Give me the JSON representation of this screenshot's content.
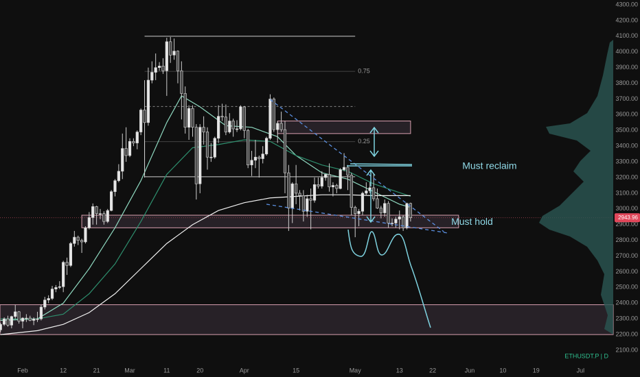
{
  "chart_data": {
    "type": "candlestick",
    "symbol_label": "ETHUSDT.P | D",
    "up_color": "#e6e6e6",
    "down_color": "#4a4a4a",
    "x": [
      "01-26",
      "01-27",
      "01-28",
      "01-29",
      "01-30",
      "01-31",
      "02-01",
      "02-02",
      "02-03",
      "02-04",
      "02-05",
      "02-06",
      "02-07",
      "02-08",
      "02-09",
      "02-10",
      "02-11",
      "02-12",
      "02-13",
      "02-14",
      "02-15",
      "02-16",
      "02-17",
      "02-18",
      "02-19",
      "02-20",
      "02-21",
      "02-22",
      "02-23",
      "02-24",
      "02-25",
      "02-26",
      "02-27",
      "02-28",
      "02-29",
      "03-01",
      "03-02",
      "03-03",
      "03-04",
      "03-05",
      "03-06",
      "03-07",
      "03-08",
      "03-09",
      "03-10",
      "03-11",
      "03-12",
      "03-13",
      "03-14",
      "03-15",
      "03-16",
      "03-17",
      "03-18",
      "03-19",
      "03-20",
      "03-21",
      "03-22",
      "03-23",
      "03-24",
      "03-25",
      "03-26",
      "03-27",
      "03-28",
      "03-29",
      "03-30",
      "03-31",
      "04-01",
      "04-02",
      "04-03",
      "04-04",
      "04-05",
      "04-06",
      "04-07",
      "04-08",
      "04-09",
      "04-10",
      "04-11",
      "04-12",
      "04-13",
      "04-14",
      "04-15",
      "04-16",
      "04-17",
      "04-18",
      "04-19",
      "04-20",
      "04-21",
      "04-22",
      "04-23",
      "04-24",
      "04-25",
      "04-26",
      "04-27",
      "04-28",
      "04-29",
      "04-30",
      "05-01",
      "05-02",
      "05-03",
      "05-04",
      "05-05",
      "05-06",
      "05-07",
      "05-08",
      "05-09",
      "05-10",
      "05-11",
      "05-12",
      "05-13",
      "05-14",
      "05-15",
      "05-16"
    ],
    "ohlc": [
      [
        2230,
        2275,
        2215,
        2265
      ],
      [
        2265,
        2310,
        2255,
        2300
      ],
      [
        2300,
        2320,
        2250,
        2260
      ],
      [
        2260,
        2320,
        2240,
        2315
      ],
      [
        2315,
        2390,
        2300,
        2345
      ],
      [
        2345,
        2350,
        2270,
        2285
      ],
      [
        2285,
        2310,
        2240,
        2305
      ],
      [
        2305,
        2330,
        2280,
        2305
      ],
      [
        2305,
        2320,
        2285,
        2290
      ],
      [
        2290,
        2310,
        2260,
        2300
      ],
      [
        2300,
        2345,
        2280,
        2300
      ],
      [
        2300,
        2390,
        2290,
        2375
      ],
      [
        2375,
        2440,
        2360,
        2420
      ],
      [
        2420,
        2450,
        2400,
        2430
      ],
      [
        2430,
        2510,
        2420,
        2490
      ],
      [
        2490,
        2515,
        2470,
        2500
      ],
      [
        2500,
        2540,
        2490,
        2505
      ],
      [
        2505,
        2670,
        2470,
        2660
      ],
      [
        2660,
        2690,
        2580,
        2640
      ],
      [
        2640,
        2790,
        2630,
        2780
      ],
      [
        2780,
        2860,
        2760,
        2820
      ],
      [
        2820,
        2830,
        2770,
        2800
      ],
      [
        2800,
        2810,
        2720,
        2790
      ],
      [
        2790,
        2890,
        2780,
        2880
      ],
      [
        2880,
        2980,
        2870,
        2945
      ],
      [
        2945,
        3035,
        2900,
        3015
      ],
      [
        3015,
        3020,
        2900,
        2970
      ],
      [
        2970,
        3000,
        2935,
        2970
      ],
      [
        2970,
        2985,
        2900,
        2920
      ],
      [
        2920,
        3000,
        2910,
        2990
      ],
      [
        2990,
        3120,
        2985,
        3110
      ],
      [
        3110,
        3190,
        3080,
        3180
      ],
      [
        3180,
        3285,
        3170,
        3240
      ],
      [
        3240,
        3480,
        3190,
        3385
      ],
      [
        3385,
        3520,
        3300,
        3340
      ],
      [
        3340,
        3450,
        3330,
        3430
      ],
      [
        3430,
        3450,
        3400,
        3420
      ],
      [
        3420,
        3500,
        3380,
        3490
      ],
      [
        3490,
        3640,
        3470,
        3630
      ],
      [
        3630,
        3820,
        3200,
        3550
      ],
      [
        3550,
        3900,
        3530,
        3820
      ],
      [
        3820,
        3940,
        3800,
        3870
      ],
      [
        3870,
        3990,
        3820,
        3900
      ],
      [
        3900,
        3935,
        3880,
        3910
      ],
      [
        3910,
        3960,
        3860,
        3880
      ],
      [
        3880,
        4090,
        3720,
        4065
      ],
      [
        4065,
        4095,
        3930,
        3980
      ],
      [
        3980,
        4085,
        3950,
        4005
      ],
      [
        4005,
        4010,
        3800,
        3880
      ],
      [
        3880,
        3940,
        3570,
        3735
      ],
      [
        3735,
        3780,
        3480,
        3520
      ],
      [
        3520,
        3660,
        3440,
        3640
      ],
      [
        3640,
        3660,
        3460,
        3520
      ],
      [
        3520,
        3540,
        3060,
        3160
      ],
      [
        3160,
        3540,
        3100,
        3520
      ],
      [
        3520,
        3590,
        3410,
        3490
      ],
      [
        3490,
        3520,
        3250,
        3330
      ],
      [
        3330,
        3420,
        3300,
        3330
      ],
      [
        3330,
        3460,
        3320,
        3450
      ],
      [
        3450,
        3660,
        3420,
        3590
      ],
      [
        3590,
        3670,
        3560,
        3585
      ],
      [
        3585,
        3665,
        3470,
        3490
      ],
      [
        3490,
        3610,
        3480,
        3560
      ],
      [
        3560,
        3575,
        3460,
        3510
      ],
      [
        3510,
        3565,
        3490,
        3510
      ],
      [
        3510,
        3660,
        3500,
        3650
      ],
      [
        3650,
        3655,
        3450,
        3500
      ],
      [
        3500,
        3510,
        3260,
        3280
      ],
      [
        3280,
        3370,
        3210,
        3310
      ],
      [
        3310,
        3440,
        3260,
        3330
      ],
      [
        3330,
        3340,
        3200,
        3320
      ],
      [
        3320,
        3400,
        3290,
        3350
      ],
      [
        3350,
        3460,
        3340,
        3450
      ],
      [
        3450,
        3730,
        3440,
        3700
      ],
      [
        3700,
        3710,
        3490,
        3505
      ],
      [
        3505,
        3560,
        3420,
        3545
      ],
      [
        3545,
        3620,
        3490,
        3505
      ],
      [
        3505,
        3560,
        3100,
        3230
      ],
      [
        3230,
        3280,
        2860,
        3005
      ],
      [
        3005,
        3170,
        2910,
        3160
      ],
      [
        3160,
        3280,
        3030,
        3100
      ],
      [
        3100,
        3120,
        2990,
        3085
      ],
      [
        3085,
        3120,
        2920,
        2985
      ],
      [
        2985,
        3090,
        2950,
        3065
      ],
      [
        3065,
        3130,
        2870,
        3055
      ],
      [
        3055,
        3200,
        3040,
        3155
      ],
      [
        3155,
        3200,
        3130,
        3145
      ],
      [
        3145,
        3240,
        3130,
        3200
      ],
      [
        3200,
        3220,
        3180,
        3220
      ],
      [
        3220,
        3290,
        3110,
        3140
      ],
      [
        3140,
        3170,
        3080,
        3150
      ],
      [
        3150,
        3160,
        3100,
        3130
      ],
      [
        3130,
        3260,
        3125,
        3250
      ],
      [
        3250,
        3355,
        3240,
        3265
      ],
      [
        3265,
        3280,
        3120,
        3215
      ],
      [
        3215,
        3230,
        2960,
        3010
      ],
      [
        3010,
        3020,
        2820,
        2970
      ],
      [
        2970,
        3000,
        2890,
        2985
      ],
      [
        2985,
        3110,
        2960,
        3100
      ],
      [
        3100,
        3170,
        3090,
        3115
      ],
      [
        3115,
        3170,
        3100,
        3135
      ],
      [
        3135,
        3220,
        3050,
        3065
      ],
      [
        3065,
        3130,
        3000,
        3005
      ],
      [
        3005,
        3020,
        2940,
        2975
      ],
      [
        2975,
        3060,
        2950,
        3035
      ],
      [
        3035,
        3050,
        2880,
        2910
      ],
      [
        2910,
        2940,
        2890,
        2910
      ],
      [
        2910,
        2950,
        2880,
        2935
      ],
      [
        2935,
        2990,
        2870,
        2950
      ],
      [
        2950,
        2960,
        2860,
        2880
      ],
      [
        2880,
        3040,
        2870,
        3035
      ],
      [
        3035,
        3040,
        2920,
        2944
      ]
    ],
    "averages": [
      {
        "color": "#8fd9c0",
        "x": [
          "01-26",
          "02-05",
          "02-12",
          "02-19",
          "02-26",
          "03-04",
          "03-11",
          "03-15",
          "03-20",
          "03-27",
          "04-03",
          "04-10",
          "04-15",
          "04-22",
          "04-29",
          "05-06",
          "05-13",
          "05-16"
        ],
        "values": [
          2290,
          2300,
          2400,
          2620,
          2880,
          3180,
          3550,
          3720,
          3650,
          3530,
          3520,
          3460,
          3340,
          3230,
          3190,
          3110,
          3030,
          3010
        ]
      },
      {
        "color": "#2e8f6e",
        "x": [
          "01-26",
          "02-05",
          "02-12",
          "02-19",
          "02-26",
          "03-04",
          "03-11",
          "03-18",
          "03-25",
          "04-01",
          "04-08",
          "04-15",
          "04-22",
          "04-29",
          "05-06",
          "05-16"
        ],
        "values": [
          2300,
          2300,
          2330,
          2460,
          2650,
          2920,
          3220,
          3390,
          3410,
          3440,
          3430,
          3340,
          3280,
          3240,
          3160,
          3080
        ]
      },
      {
        "color": "#f2f2f2",
        "x": [
          "01-26",
          "02-05",
          "02-12",
          "02-19",
          "02-26",
          "03-04",
          "03-11",
          "03-18",
          "03-25",
          "04-01",
          "04-08",
          "04-15",
          "04-22",
          "04-29",
          "05-06",
          "05-16"
        ],
        "values": [
          2200,
          2225,
          2265,
          2340,
          2460,
          2620,
          2780,
          2900,
          2990,
          3040,
          3070,
          3080,
          3090,
          3090,
          3085,
          3085
        ]
      }
    ],
    "fib": {
      "from": "03-05",
      "to": "05-01",
      "high": 4100,
      "low": 3205,
      "mid": 0.5,
      "levels": [
        {
          "value": 0.75,
          "label": "0.75"
        },
        {
          "value": 0.25,
          "label": "0.25"
        }
      ]
    },
    "zones": [
      {
        "from": "04-10",
        "to": "05-16",
        "low": 3480,
        "high": 3560
      },
      {
        "from": "02-17",
        "to": "05-29",
        "low": 2880,
        "high": 2960
      },
      {
        "from": "01-20",
        "to": "07-30",
        "low": 2200,
        "high": 2390
      }
    ],
    "trendlines": [
      {
        "x": [
          "04-08",
          "05-25"
        ],
        "values": [
          3697,
          2855
        ]
      },
      {
        "x": [
          "04-07",
          "05-26"
        ],
        "values": [
          3030,
          2847
        ]
      }
    ],
    "last_price": {
      "value": 2943.96,
      "label": "2943.96"
    },
    "annotations": [
      {
        "text": "Must reclaim",
        "price": 3270,
        "at": "05-30"
      },
      {
        "text": "Must hold",
        "price": 2915,
        "at": "05-27"
      }
    ],
    "ylim": [
      2100,
      4300
    ],
    "yticks": [
      {
        "value": 4300,
        "label": "4300.00"
      },
      {
        "value": 4200,
        "label": "4200.00"
      },
      {
        "value": 4100,
        "label": "4100.00"
      },
      {
        "value": 4000,
        "label": "4000.00"
      },
      {
        "value": 3900,
        "label": "3900.00"
      },
      {
        "value": 3800,
        "label": "3800.00"
      },
      {
        "value": 3700,
        "label": "3700.00"
      },
      {
        "value": 3600,
        "label": "3600.00"
      },
      {
        "value": 3500,
        "label": "3500.00"
      },
      {
        "value": 3400,
        "label": "3400.00"
      },
      {
        "value": 3300,
        "label": "3300.00"
      },
      {
        "value": 3200,
        "label": "3200.00"
      },
      {
        "value": 3100,
        "label": "3100.00"
      },
      {
        "value": 3000,
        "label": "3000.00"
      },
      {
        "value": 2900,
        "label": "2900.00"
      },
      {
        "value": 2800,
        "label": "2800.00"
      },
      {
        "value": 2700,
        "label": "2700.00"
      },
      {
        "value": 2600,
        "label": "2600.00"
      },
      {
        "value": 2500,
        "label": "2500.00"
      },
      {
        "value": 2400,
        "label": "2400.00"
      },
      {
        "value": 2300,
        "label": "2300.00"
      },
      {
        "value": 2200,
        "label": "2200.00"
      },
      {
        "value": 2100,
        "label": "2100.00"
      }
    ],
    "xticks": [
      {
        "value": "02-01",
        "label": "Feb"
      },
      {
        "value": "02-12",
        "label": "12"
      },
      {
        "value": "02-21",
        "label": "21"
      },
      {
        "value": "03-01",
        "label": "Mar"
      },
      {
        "value": "03-11",
        "label": "11"
      },
      {
        "value": "03-20",
        "label": "20"
      },
      {
        "value": "04-01",
        "label": "Apr"
      },
      {
        "value": "04-15",
        "label": "15"
      },
      {
        "value": "05-01",
        "label": "May"
      },
      {
        "value": "05-13",
        "label": "13"
      },
      {
        "value": "05-22",
        "label": "22"
      },
      {
        "value": "06-01",
        "label": "Jun"
      },
      {
        "value": "06-10",
        "label": "10"
      },
      {
        "value": "06-19",
        "label": "19"
      },
      {
        "value": "07-01",
        "label": "Jul"
      }
    ]
  }
}
